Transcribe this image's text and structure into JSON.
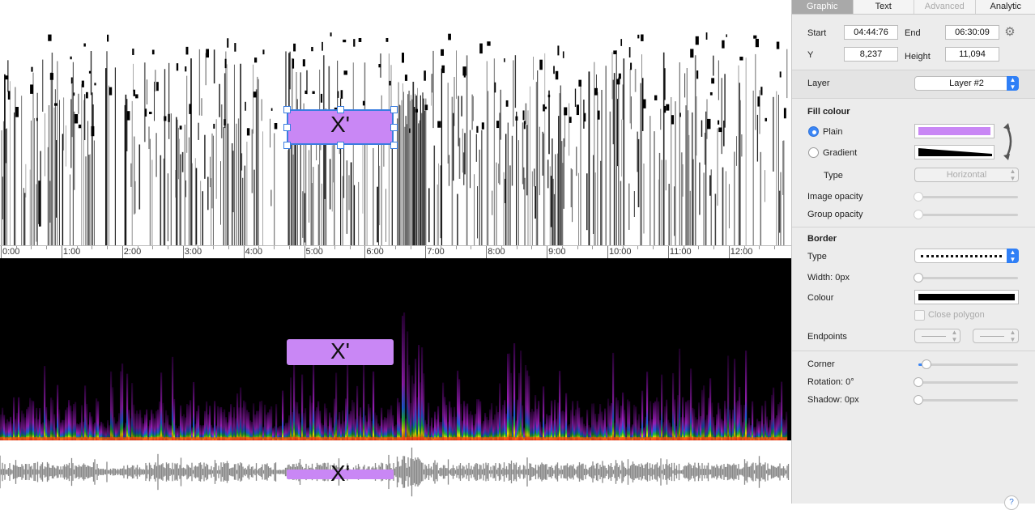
{
  "canvas": {
    "timeline": [
      "0:00",
      "1:00",
      "2:00",
      "3:00",
      "4:00",
      "5:00",
      "6:00",
      "7:00",
      "8:00",
      "9:00",
      "10:00",
      "11:00",
      "12:00"
    ],
    "shape_label": "X'",
    "shape_color": "#c987f5"
  },
  "inspector": {
    "tabs": [
      {
        "label": "Graphic",
        "state": "active"
      },
      {
        "label": "Text",
        "state": "normal"
      },
      {
        "label": "Advanced",
        "state": "disabled"
      },
      {
        "label": "Analytic",
        "state": "normal"
      }
    ],
    "geometry": {
      "start_label": "Start",
      "start_value": "04:44:76",
      "end_label": "End",
      "end_value": "06:30:09",
      "y_label": "Y",
      "y_value": "8,237",
      "height_label": "Height",
      "height_value": "11,094",
      "settings_icon": "gear-icon"
    },
    "layer": {
      "label": "Layer",
      "value": "Layer #2"
    },
    "fill": {
      "heading": "Fill colour",
      "plain_label": "Plain",
      "gradient_label": "Gradient",
      "plain_color": "#c987f5",
      "type_label": "Type",
      "type_value": "Horizontal",
      "image_opacity_label": "Image opacity",
      "group_opacity_label": "Group opacity",
      "image_opacity": 0,
      "group_opacity": 0
    },
    "border": {
      "heading": "Border",
      "type_label": "Type",
      "width_label": "Width:",
      "width_value": "0px",
      "colour_label": "Colour",
      "colour_value": "#000000",
      "close_polygon_label": "Close polygon",
      "endpoints_label": "Endpoints",
      "width": 0
    },
    "misc": {
      "corner_label": "Corner",
      "corner": 0.08,
      "rotation_label": "Rotation:",
      "rotation_value": "0°",
      "shadow_label": "Shadow:",
      "shadow_value": "0px",
      "rotation": 0,
      "shadow": 0
    }
  }
}
